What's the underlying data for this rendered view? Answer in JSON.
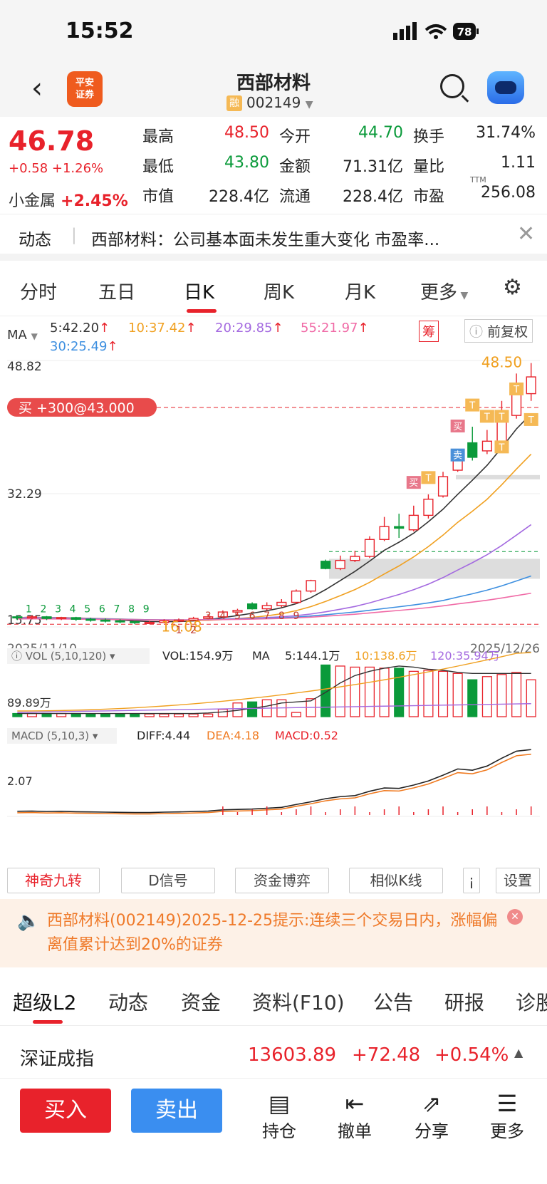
{
  "status": {
    "time": "15:52",
    "battery": "78"
  },
  "header": {
    "broker_logo": "平安\n证券",
    "title": "西部材料",
    "badge": "融",
    "code": "002149"
  },
  "quote": {
    "price": "46.78",
    "change": "+0.58 +1.26%",
    "sector_name": "小金属",
    "sector_change": "+2.45%",
    "fields": [
      {
        "k": "最高",
        "v": "48.50",
        "c": "red"
      },
      {
        "k": "今开",
        "v": "44.70",
        "c": "green"
      },
      {
        "k": "换手",
        "v": "31.74%",
        "c": ""
      },
      {
        "k": "最低",
        "v": "43.80",
        "c": "green"
      },
      {
        "k": "金额",
        "v": "71.31亿",
        "c": ""
      },
      {
        "k": "量比",
        "v": "1.11",
        "c": ""
      },
      {
        "k": "市值",
        "v": "228.4亿",
        "c": ""
      },
      {
        "k": "流通",
        "v": "228.4亿",
        "c": ""
      },
      {
        "k": "市盈",
        "v": "256.08",
        "c": ""
      }
    ],
    "pe_sup": "TTM"
  },
  "news": {
    "tag": "动态",
    "text": "西部材料：公司基本面未发生重大变化 市盈率..."
  },
  "chart_tabs": [
    "分时",
    "五日",
    "日K",
    "周K",
    "月K",
    "更多"
  ],
  "ma": {
    "label": "MA",
    "ma5": "5:42.20",
    "ma10": "10:37.42",
    "ma20": "20:29.85",
    "ma55": "55:21.97",
    "ma30": "30:25.49",
    "chou": "筹",
    "fq": "前复权"
  },
  "kline": {
    "ymax": "48.82",
    "ymid": "32.29",
    "ymin": "15.75",
    "high_label": "48.50",
    "low_label": "16.08",
    "date_start": "2025/11/10",
    "date_end": "2025/12/26",
    "trade_tag": "买 +300@43.000"
  },
  "vol": {
    "title": "VOL (5,10,120)",
    "vol": "VOL:154.9万",
    "ma_label": "MA",
    "ma5": "5:144.1万",
    "ma10": "10:138.6万",
    "ma120": "120:35.94万",
    "axis": "89.89万"
  },
  "macd": {
    "title": "MACD (5,10,3)",
    "diff": "DIFF:4.44",
    "dea": "DEA:4.18",
    "macd": "MACD:0.52",
    "axis": "2.07"
  },
  "tools": [
    "神奇九转",
    "D信号",
    "资金博弈",
    "相似K线",
    "设置"
  ],
  "alert": {
    "text": "西部材料(002149)2025-12-25提示:连续三个交易日内，涨幅偏离值累计达到20%的证券"
  },
  "bottom_tabs": [
    "超级L2",
    "动态",
    "资金",
    "资料(F10)",
    "公告",
    "研报",
    "诊股"
  ],
  "index": {
    "name": "深证成指",
    "value": "13603.89",
    "change": "+72.48",
    "pct": "+0.54%"
  },
  "footer": {
    "buy": "买入",
    "sell": "卖出",
    "hold": "持仓",
    "cancel": "撤单",
    "share": "分享",
    "more": "更多"
  },
  "chart_data": {
    "type": "candlestick",
    "x_start": "2025/11/10",
    "x_end": "2025/12/26",
    "ylim": [
      15.75,
      48.82
    ],
    "candles": [
      {
        "o": 17.0,
        "c": 16.9,
        "h": 17.2,
        "l": 16.6
      },
      {
        "o": 16.9,
        "c": 17.0,
        "h": 17.2,
        "l": 16.7
      },
      {
        "o": 17.0,
        "c": 16.8,
        "h": 17.1,
        "l": 16.6
      },
      {
        "o": 16.8,
        "c": 16.9,
        "h": 17.0,
        "l": 16.6
      },
      {
        "o": 16.9,
        "c": 16.7,
        "h": 17.0,
        "l": 16.5
      },
      {
        "o": 16.7,
        "c": 16.6,
        "h": 16.9,
        "l": 16.4
      },
      {
        "o": 16.6,
        "c": 16.5,
        "h": 16.8,
        "l": 16.3
      },
      {
        "o": 16.5,
        "c": 16.4,
        "h": 16.7,
        "l": 16.2
      },
      {
        "o": 16.4,
        "c": 16.3,
        "h": 16.5,
        "l": 16.08
      },
      {
        "o": 16.3,
        "c": 16.3,
        "h": 16.5,
        "l": 16.1
      },
      {
        "o": 16.3,
        "c": 16.5,
        "h": 16.7,
        "l": 16.2
      },
      {
        "o": 16.5,
        "c": 16.6,
        "h": 16.8,
        "l": 16.4
      },
      {
        "o": 16.6,
        "c": 16.8,
        "h": 17.0,
        "l": 16.5
      },
      {
        "o": 16.8,
        "c": 17.0,
        "h": 17.2,
        "l": 16.7
      },
      {
        "o": 17.0,
        "c": 17.6,
        "h": 17.8,
        "l": 16.9
      },
      {
        "o": 17.6,
        "c": 17.8,
        "h": 18.0,
        "l": 17.3
      },
      {
        "o": 18.6,
        "c": 18.0,
        "h": 18.8,
        "l": 17.9
      },
      {
        "o": 18.0,
        "c": 18.4,
        "h": 18.8,
        "l": 17.8
      },
      {
        "o": 18.4,
        "c": 18.8,
        "h": 19.2,
        "l": 18.2
      },
      {
        "o": 18.8,
        "c": 20.2,
        "h": 20.4,
        "l": 18.6
      },
      {
        "o": 20.2,
        "c": 21.5,
        "h": 21.6,
        "l": 20.0
      },
      {
        "o": 23.9,
        "c": 23.0,
        "h": 24.1,
        "l": 22.9
      },
      {
        "o": 23.0,
        "c": 24.0,
        "h": 24.6,
        "l": 22.8
      },
      {
        "o": 24.0,
        "c": 24.5,
        "h": 25.2,
        "l": 23.8
      },
      {
        "o": 24.5,
        "c": 26.6,
        "h": 27.0,
        "l": 24.3
      },
      {
        "o": 26.6,
        "c": 28.2,
        "h": 29.4,
        "l": 26.4
      },
      {
        "o": 28.2,
        "c": 28.0,
        "h": 29.8,
        "l": 26.8
      },
      {
        "o": 27.8,
        "c": 29.6,
        "h": 30.8,
        "l": 27.6
      },
      {
        "o": 29.6,
        "c": 31.6,
        "h": 32.2,
        "l": 29.2
      },
      {
        "o": 32.0,
        "c": 34.4,
        "h": 35.0,
        "l": 31.8
      },
      {
        "o": 35.2,
        "c": 37.4,
        "h": 37.8,
        "l": 35.0
      },
      {
        "o": 38.6,
        "c": 36.8,
        "h": 40.6,
        "l": 36.4
      },
      {
        "o": 37.6,
        "c": 38.8,
        "h": 40.2,
        "l": 37.2
      },
      {
        "o": 38.0,
        "c": 42.6,
        "h": 43.8,
        "l": 37.6
      },
      {
        "o": 42.0,
        "c": 46.0,
        "h": 47.2,
        "l": 41.6
      },
      {
        "o": 44.7,
        "c": 46.78,
        "h": 48.5,
        "l": 43.8
      }
    ]
  }
}
